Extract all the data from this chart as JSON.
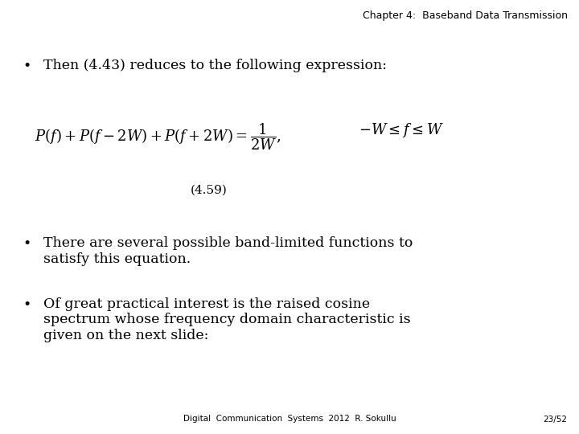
{
  "background_color": "#ffffff",
  "header_text": "Chapter 4:  Baseband Data Transmission",
  "header_fontsize": 9,
  "header_color": "#000000",
  "bullet1_text": "Then (4.43) reduces to the following expression:",
  "equation_number": "(4.59)",
  "bullet2_text": "There are several possible band-limited functions to\nsatisfy this equation.",
  "bullet3_text": "Of great practical interest is the raised cosine\nspectrum whose frequency domain characteristic is\ngiven on the next slide:",
  "footer_text": "Digital  Communication  Systems  2012  R. Sokullu",
  "footer_page": "23/52",
  "footer_fontsize": 7.5,
  "body_fontsize": 12.5,
  "eq_fontsize": 12,
  "eq_num_fontsize": 11
}
